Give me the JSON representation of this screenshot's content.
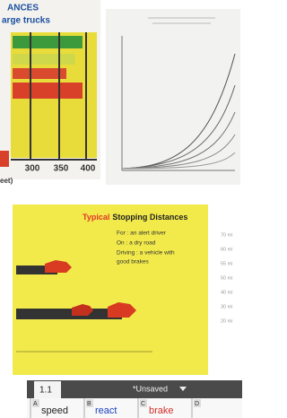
{
  "left_panel": {
    "title_lines": [
      "ANCES",
      "arge trucks"
    ],
    "axis_labels": [
      "300",
      "350",
      "400"
    ],
    "axis_unit": "eet)"
  },
  "slide": {
    "title_highlight": "Typical",
    "title": "Stopping Distances",
    "lines": [
      "For : an alert driver",
      "On : a dry road",
      "Driving : a vehicle with",
      "good brakes"
    ],
    "speed_labels": [
      "70 mi",
      "60 mi",
      "55 mi",
      "50 mi",
      "40 mi",
      "30 mi",
      "20 mi"
    ]
  },
  "toolbar": {
    "tab": "1.1",
    "doc_status": "*Unsaved"
  },
  "columns": [
    {
      "letter": "A",
      "name": "speed"
    },
    {
      "letter": "B",
      "name": "react"
    },
    {
      "letter": "C",
      "name": "brake"
    },
    {
      "letter": "D"
    }
  ]
}
